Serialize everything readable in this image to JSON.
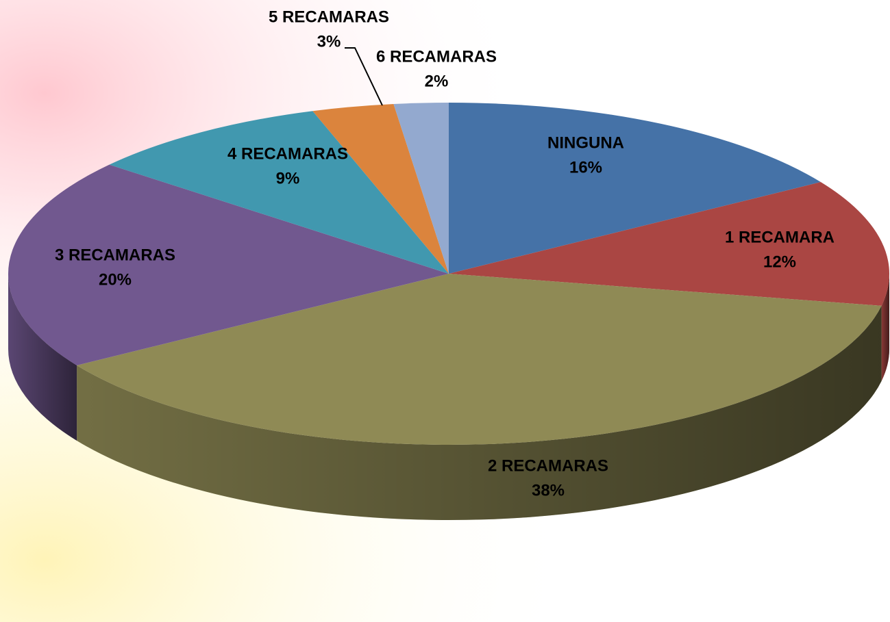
{
  "chart_data": {
    "type": "pie",
    "categories": [
      "NINGUNA",
      "1 RECAMARA",
      "2 RECAMARAS",
      "3 RECAMARAS",
      "4 RECAMARAS",
      "5 RECAMARAS",
      "6 RECAMARAS"
    ],
    "values": [
      16,
      12,
      38,
      20,
      9,
      3,
      2
    ],
    "value_labels": [
      "16%",
      "12%",
      "38%",
      "20%",
      "9%",
      "3%",
      "2%"
    ],
    "colors": [
      "#4572a7",
      "#aa4643",
      "#8f8a55",
      "#71588f",
      "#4198af",
      "#db843d",
      "#93a9cf"
    ]
  }
}
